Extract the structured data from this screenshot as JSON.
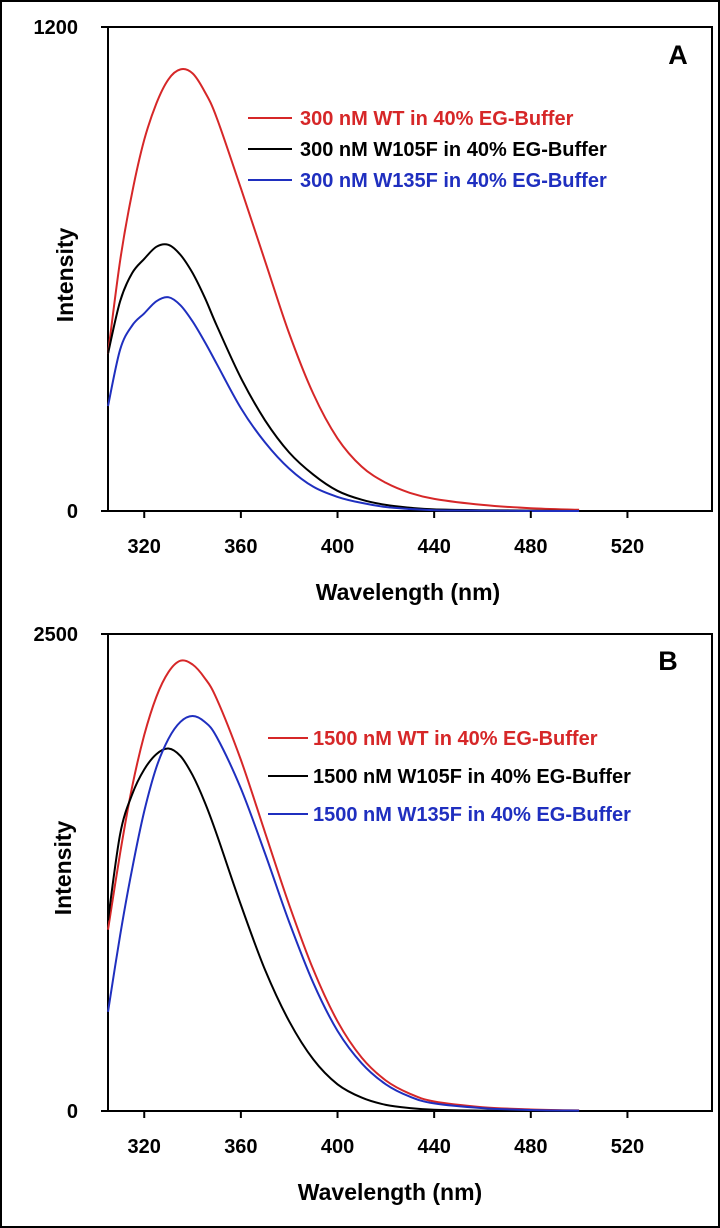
{
  "chart_data": [
    {
      "type": "line",
      "panel_label": "A",
      "xlabel": "Wavelength (nm)",
      "ylabel": "Intensity",
      "xlim": [
        305,
        555
      ],
      "ylim": [
        0,
        1200
      ],
      "xticks": [
        320,
        360,
        400,
        440,
        480,
        520
      ],
      "yticks": [
        0,
        1200
      ],
      "legend_position": "top-right",
      "grid": false,
      "x": [
        305,
        310,
        315,
        320,
        325,
        330,
        335,
        340,
        345,
        350,
        360,
        370,
        380,
        390,
        400,
        410,
        420,
        430,
        440,
        460,
        480,
        500
      ],
      "series": [
        {
          "name": "300 nM WT in 40% EG-Buffer",
          "color": "#d62728",
          "values": [
            390,
            620,
            790,
            920,
            1010,
            1070,
            1095,
            1085,
            1040,
            975,
            800,
            620,
            440,
            290,
            180,
            110,
            70,
            45,
            30,
            15,
            7,
            3
          ]
        },
        {
          "name": "300 nM W105F in 40% EG-Buffer",
          "color": "#000000",
          "values": [
            390,
            520,
            590,
            625,
            655,
            660,
            635,
            590,
            530,
            460,
            330,
            225,
            145,
            90,
            50,
            28,
            15,
            8,
            4,
            2,
            1,
            0
          ]
        },
        {
          "name": "300 nM W135F in 40% EG-Buffer",
          "color": "#1f2fbf",
          "values": [
            260,
            400,
            460,
            490,
            520,
            530,
            510,
            470,
            420,
            365,
            255,
            170,
            105,
            60,
            35,
            20,
            10,
            5,
            2,
            1,
            0,
            0
          ]
        }
      ]
    },
    {
      "type": "line",
      "panel_label": "B",
      "xlabel": "Wavelength (nm)",
      "ylabel": "Intensity",
      "xlim": [
        305,
        555
      ],
      "ylim": [
        0,
        2500
      ],
      "xticks": [
        320,
        360,
        400,
        440,
        480,
        520
      ],
      "yticks": [
        0,
        2500
      ],
      "legend_position": "top-right",
      "grid": false,
      "x": [
        305,
        310,
        315,
        320,
        325,
        330,
        335,
        340,
        345,
        350,
        360,
        370,
        380,
        390,
        400,
        410,
        420,
        430,
        440,
        460,
        480,
        500
      ],
      "series": [
        {
          "name": "1500 nM WT in 40% EG-Buffer",
          "color": "#d62728",
          "values": [
            950,
            1350,
            1700,
            1970,
            2170,
            2300,
            2360,
            2340,
            2270,
            2160,
            1840,
            1460,
            1080,
            740,
            470,
            280,
            160,
            90,
            50,
            20,
            8,
            3
          ]
        },
        {
          "name": "1500 nM W105F in 40% EG-Buffer",
          "color": "#000000",
          "values": [
            1000,
            1450,
            1660,
            1790,
            1870,
            1900,
            1860,
            1760,
            1620,
            1450,
            1080,
            740,
            470,
            270,
            140,
            70,
            32,
            15,
            7,
            2,
            1,
            0
          ]
        },
        {
          "name": "1500 nM W135F in 40% EG-Buffer",
          "color": "#1f2fbf",
          "values": [
            520,
            920,
            1270,
            1570,
            1800,
            1950,
            2040,
            2070,
            2040,
            1960,
            1690,
            1350,
            990,
            670,
            420,
            250,
            140,
            75,
            40,
            15,
            5,
            2
          ]
        }
      ]
    }
  ]
}
